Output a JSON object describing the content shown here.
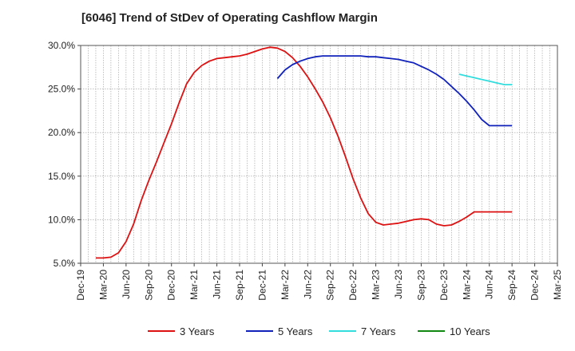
{
  "chart_data": {
    "type": "line",
    "title": "[6046]  Trend of StDev of Operating Cashflow Margin",
    "xlabel": "",
    "ylabel": "",
    "ylim": [
      5.0,
      30.0
    ],
    "yticks": [
      "5.0%",
      "10.0%",
      "15.0%",
      "20.0%",
      "25.0%",
      "30.0%"
    ],
    "xticks": [
      "Dec-19",
      "Mar-20",
      "Jun-20",
      "Sep-20",
      "Dec-20",
      "Mar-21",
      "Jun-21",
      "Sep-21",
      "Dec-21",
      "Mar-22",
      "Jun-22",
      "Sep-22",
      "Dec-22",
      "Mar-23",
      "Jun-23",
      "Sep-23",
      "Dec-23",
      "Mar-24",
      "Jun-24",
      "Sep-24",
      "Dec-24",
      "Mar-25"
    ],
    "grid": true,
    "legend_position": "bottom",
    "series": [
      {
        "name": "3 Years",
        "color": "#dd1111",
        "x": [
          "Feb-20",
          "Mar-20",
          "Apr-20",
          "May-20",
          "Jun-20",
          "Jul-20",
          "Aug-20",
          "Sep-20",
          "Oct-20",
          "Nov-20",
          "Dec-20",
          "Jan-21",
          "Feb-21",
          "Mar-21",
          "Apr-21",
          "May-21",
          "Jun-21",
          "Jul-21",
          "Aug-21",
          "Sep-21",
          "Oct-21",
          "Nov-21",
          "Dec-21",
          "Jan-22",
          "Feb-22",
          "Mar-22",
          "Apr-22",
          "May-22",
          "Jun-22",
          "Jul-22",
          "Aug-22",
          "Sep-22",
          "Oct-22",
          "Nov-22",
          "Dec-22",
          "Jan-23",
          "Feb-23",
          "Mar-23",
          "Apr-23",
          "May-23",
          "Jun-23",
          "Jul-23",
          "Aug-23",
          "Sep-23",
          "Oct-23",
          "Nov-23",
          "Dec-23",
          "Jan-24",
          "Feb-24",
          "Mar-24",
          "Apr-24",
          "May-24",
          "Jun-24",
          "Jul-24",
          "Aug-24",
          "Sep-24"
        ],
        "values": [
          5.6,
          5.6,
          5.7,
          6.2,
          7.5,
          9.5,
          12.2,
          14.5,
          16.6,
          18.8,
          21.0,
          23.4,
          25.6,
          26.9,
          27.7,
          28.2,
          28.5,
          28.6,
          28.7,
          28.8,
          29.0,
          29.3,
          29.6,
          29.8,
          29.7,
          29.3,
          28.6,
          27.6,
          26.4,
          25.0,
          23.5,
          21.7,
          19.6,
          17.2,
          14.7,
          12.5,
          10.7,
          9.7,
          9.4,
          9.5,
          9.6,
          9.8,
          10.0,
          10.1,
          10.0,
          9.5,
          9.3,
          9.4,
          9.8,
          10.3,
          10.9,
          10.9,
          10.9,
          10.9,
          10.9,
          10.9
        ]
      },
      {
        "name": "5 Years",
        "color": "#1122bb",
        "x": [
          "Feb-22",
          "Mar-22",
          "Apr-22",
          "May-22",
          "Jun-22",
          "Jul-22",
          "Aug-22",
          "Sep-22",
          "Oct-22",
          "Nov-22",
          "Dec-22",
          "Jan-23",
          "Feb-23",
          "Mar-23",
          "Apr-23",
          "May-23",
          "Jun-23",
          "Jul-23",
          "Aug-23",
          "Sep-23",
          "Oct-23",
          "Nov-23",
          "Dec-23",
          "Jan-24",
          "Feb-24",
          "Mar-24",
          "Apr-24",
          "May-24",
          "Jun-24",
          "Jul-24",
          "Aug-24",
          "Sep-24"
        ],
        "values": [
          26.2,
          27.2,
          27.8,
          28.2,
          28.5,
          28.7,
          28.8,
          28.8,
          28.8,
          28.8,
          28.8,
          28.8,
          28.7,
          28.7,
          28.6,
          28.5,
          28.4,
          28.2,
          28.0,
          27.6,
          27.2,
          26.7,
          26.1,
          25.3,
          24.5,
          23.6,
          22.6,
          21.5,
          20.8,
          20.8,
          20.8,
          20.8
        ]
      },
      {
        "name": "7 Years",
        "color": "#33dddd",
        "x": [
          "Feb-24",
          "Mar-24",
          "Apr-24",
          "May-24",
          "Jun-24",
          "Jul-24",
          "Aug-24",
          "Sep-24"
        ],
        "values": [
          26.7,
          26.5,
          26.3,
          26.1,
          25.9,
          25.7,
          25.5,
          25.5
        ]
      },
      {
        "name": "10 Years",
        "color": "#118811",
        "x": [],
        "values": []
      }
    ]
  }
}
